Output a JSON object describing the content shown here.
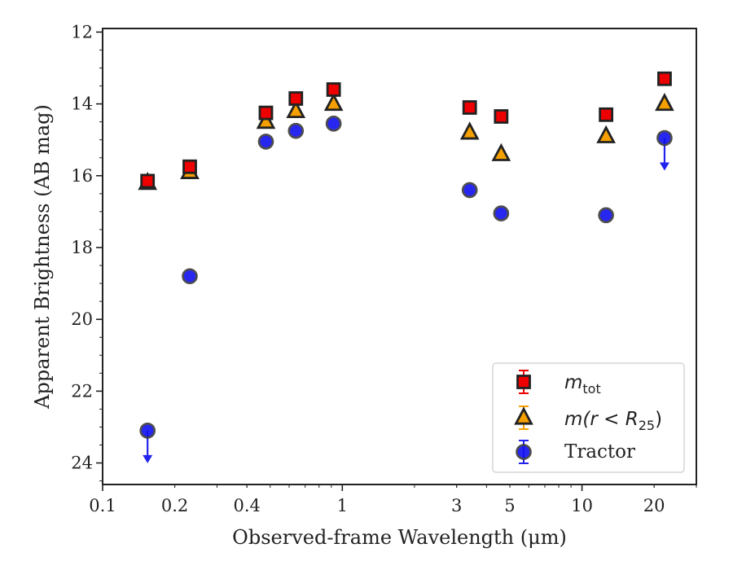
{
  "chart_data": {
    "type": "scatter",
    "xlabel": "Observed-frame Wavelength (μm)",
    "ylabel": "Apparent Brightness (AB mag)",
    "x_scale": "log",
    "xlim": [
      0.1,
      30
    ],
    "ylim": [
      24.6,
      11.9
    ],
    "y_inverted": true,
    "x_ticks": [
      {
        "value": 0.1,
        "label": "0.1"
      },
      {
        "value": 0.2,
        "label": "0.2"
      },
      {
        "value": 0.4,
        "label": "0.4"
      },
      {
        "value": 1,
        "label": "1"
      },
      {
        "value": 3,
        "label": "3"
      },
      {
        "value": 5,
        "label": "5"
      },
      {
        "value": 10,
        "label": "10"
      },
      {
        "value": 20,
        "label": "20"
      }
    ],
    "y_ticks": [
      {
        "value": 12,
        "label": "12"
      },
      {
        "value": 14,
        "label": "14"
      },
      {
        "value": 16,
        "label": "16"
      },
      {
        "value": 18,
        "label": "18"
      },
      {
        "value": 20,
        "label": "20"
      },
      {
        "value": 22,
        "label": "22"
      },
      {
        "value": 24,
        "label": "24"
      }
    ],
    "legend_position": "bottom-right",
    "series": [
      {
        "name": "m_tot",
        "marker": "square",
        "color": "#ee0000",
        "points": [
          {
            "x": 0.154,
            "y": 16.15
          },
          {
            "x": 0.231,
            "y": 15.75
          },
          {
            "x": 0.48,
            "y": 14.25
          },
          {
            "x": 0.64,
            "y": 13.85
          },
          {
            "x": 0.92,
            "y": 13.6
          },
          {
            "x": 3.4,
            "y": 14.1
          },
          {
            "x": 4.6,
            "y": 14.35
          },
          {
            "x": 12.6,
            "y": 14.3
          },
          {
            "x": 22.1,
            "y": 13.3
          }
        ]
      },
      {
        "name": "m(r < R25)",
        "marker": "triangle",
        "color": "#f5a000",
        "points": [
          {
            "x": 0.154,
            "y": 16.2
          },
          {
            "x": 0.231,
            "y": 15.9
          },
          {
            "x": 0.48,
            "y": 14.5
          },
          {
            "x": 0.64,
            "y": 14.2
          },
          {
            "x": 0.92,
            "y": 14.0
          },
          {
            "x": 3.4,
            "y": 14.8
          },
          {
            "x": 4.6,
            "y": 15.4
          },
          {
            "x": 12.6,
            "y": 14.9
          },
          {
            "x": 22.1,
            "y": 14.0
          }
        ]
      },
      {
        "name": "Tractor",
        "marker": "circle",
        "color": "#1010ee",
        "points": [
          {
            "x": 0.154,
            "y": 23.1,
            "upper_limit": true
          },
          {
            "x": 0.231,
            "y": 18.8
          },
          {
            "x": 0.48,
            "y": 15.05
          },
          {
            "x": 0.64,
            "y": 14.75
          },
          {
            "x": 0.92,
            "y": 14.55
          },
          {
            "x": 3.4,
            "y": 16.4
          },
          {
            "x": 4.6,
            "y": 17.05
          },
          {
            "x": 12.6,
            "y": 17.1
          },
          {
            "x": 22.1,
            "y": 14.95,
            "upper_limit": true
          }
        ]
      }
    ],
    "legend": {
      "m_tot": {
        "base": "m",
        "sub": "tot"
      },
      "m_r": {
        "prefix": "m(r < R",
        "sub": "25",
        "suffix": ")"
      },
      "tractor": "Tractor"
    }
  }
}
